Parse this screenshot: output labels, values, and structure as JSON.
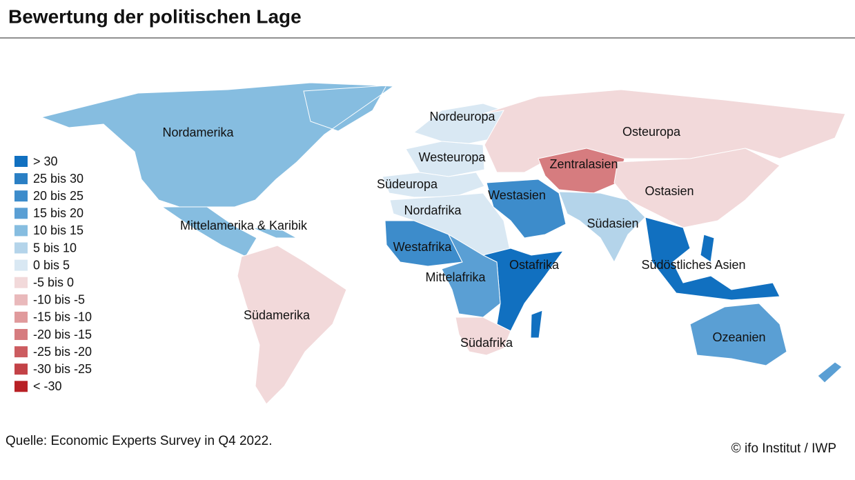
{
  "header": {
    "title": "Bewertung der politischen Lage"
  },
  "legend": [
    {
      "label": "> 30",
      "color": "#1170c0"
    },
    {
      "label": "25 bis 30",
      "color": "#2a7fc4"
    },
    {
      "label": "20 bis 25",
      "color": "#3d8ccb"
    },
    {
      "label": "15 bis 20",
      "color": "#5a9fd4"
    },
    {
      "label": "10 bis 15",
      "color": "#86bde0"
    },
    {
      "label": "5 bis 10",
      "color": "#b4d4ea"
    },
    {
      "label": "0 bis 5",
      "color": "#d9e8f3"
    },
    {
      "label": "-5 bis 0",
      "color": "#f2d9da"
    },
    {
      "label": "-10 bis -5",
      "color": "#e9b9bb"
    },
    {
      "label": "-15 bis -10",
      "color": "#e09a9c"
    },
    {
      "label": "-20 bis -15",
      "color": "#d67c7f"
    },
    {
      "label": "-25 bis -20",
      "color": "#cc5c60"
    },
    {
      "label": "-30 bis -25",
      "color": "#c34247"
    },
    {
      "label": "< -30",
      "color": "#b82025"
    }
  ],
  "regions": [
    {
      "label": "Nordamerika",
      "color": "#86bde0"
    },
    {
      "label": "Mittelamerika & Karibik",
      "color": "#86bde0"
    },
    {
      "label": "Südamerika",
      "color": "#f2d9da"
    },
    {
      "label": "Nordeuropa",
      "color": "#d9e8f3"
    },
    {
      "label": "Westeuropa",
      "color": "#d9e8f3"
    },
    {
      "label": "Südeuropa",
      "color": "#d9e8f3"
    },
    {
      "label": "Osteuropa",
      "color": "#f2d9da"
    },
    {
      "label": "Zentralasien",
      "color": "#d67c7f"
    },
    {
      "label": "Ostasien",
      "color": "#f2d9da"
    },
    {
      "label": "Westasien",
      "color": "#3d8ccb"
    },
    {
      "label": "Südasien",
      "color": "#b4d4ea"
    },
    {
      "label": "Südöstliches Asien",
      "color": "#1170c0"
    },
    {
      "label": "Nordafrika",
      "color": "#d9e8f3"
    },
    {
      "label": "Westafrika",
      "color": "#3d8ccb"
    },
    {
      "label": "Ostafrika",
      "color": "#1170c0"
    },
    {
      "label": "Mittelafrika",
      "color": "#5a9fd4"
    },
    {
      "label": "Südafrika",
      "color": "#f2d9da"
    },
    {
      "label": "Ozeanien",
      "color": "#5a9fd4"
    }
  ],
  "footer": {
    "source": "Quelle: Economic Experts Survey in Q4 2022.",
    "credit": "© ifo Institut / IWP"
  }
}
